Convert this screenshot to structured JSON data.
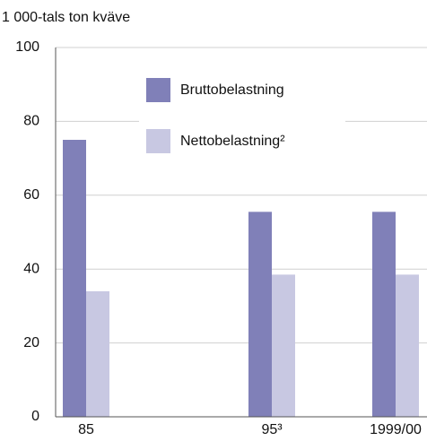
{
  "chart_data": {
    "type": "bar",
    "y_label": "1 000-tals ton kväve",
    "categories": [
      "85",
      "95³",
      "1999/00"
    ],
    "series": [
      {
        "name": "Bruttobelastning",
        "color": "#8080b8",
        "values": [
          75,
          55.5,
          55.5
        ]
      },
      {
        "name": "Nettobelastning²",
        "color": "#c8c8e2",
        "values": [
          34,
          38.5,
          38.5
        ]
      }
    ],
    "ylim": [
      0,
      100
    ],
    "yticks": [
      0,
      20,
      40,
      60,
      80,
      100
    ],
    "grid": true
  }
}
